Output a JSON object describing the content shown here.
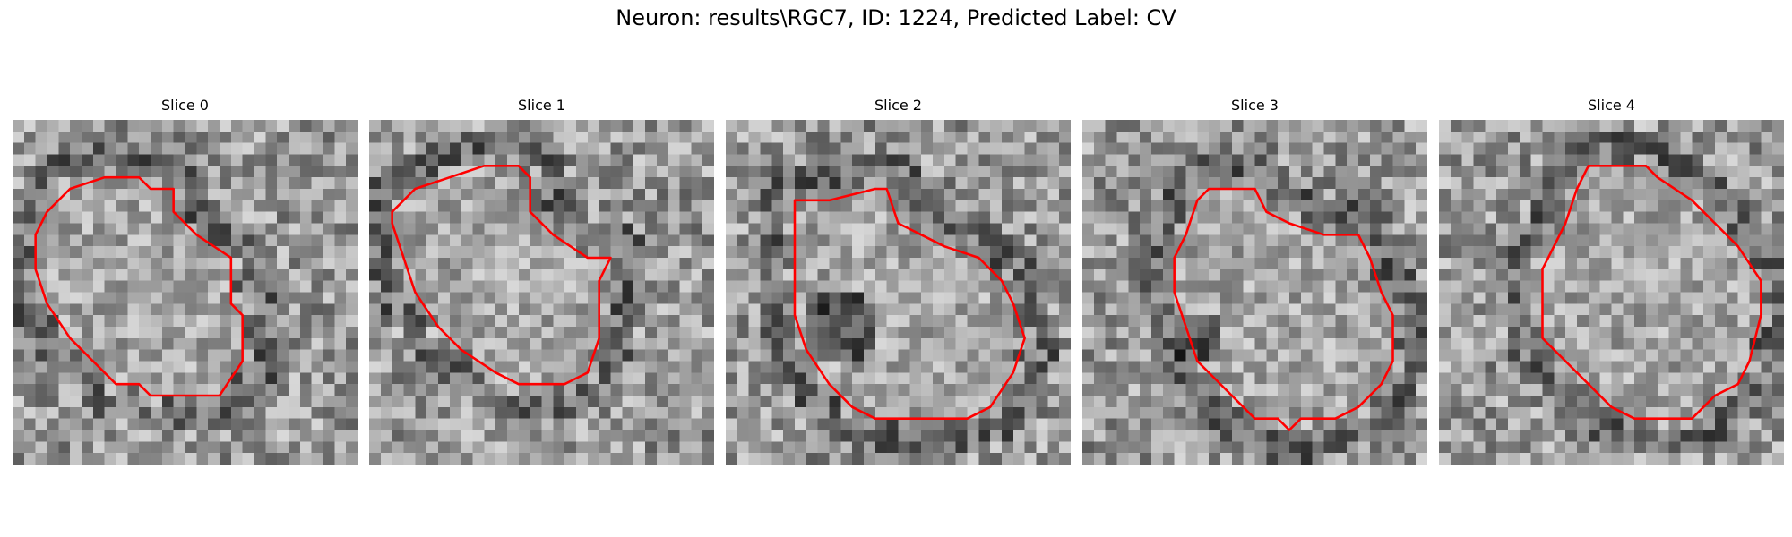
{
  "figure": {
    "title": "Neuron: results\\RGC7, ID: 1224, Predicted Label: CV",
    "contour_color": "#ff0000",
    "colormap": "grayscale",
    "slices": [
      {
        "title": "Slice 0"
      },
      {
        "title": "Slice 1"
      },
      {
        "title": "Slice 2"
      },
      {
        "title": "Slice 3"
      },
      {
        "title": "Slice 4"
      }
    ]
  }
}
